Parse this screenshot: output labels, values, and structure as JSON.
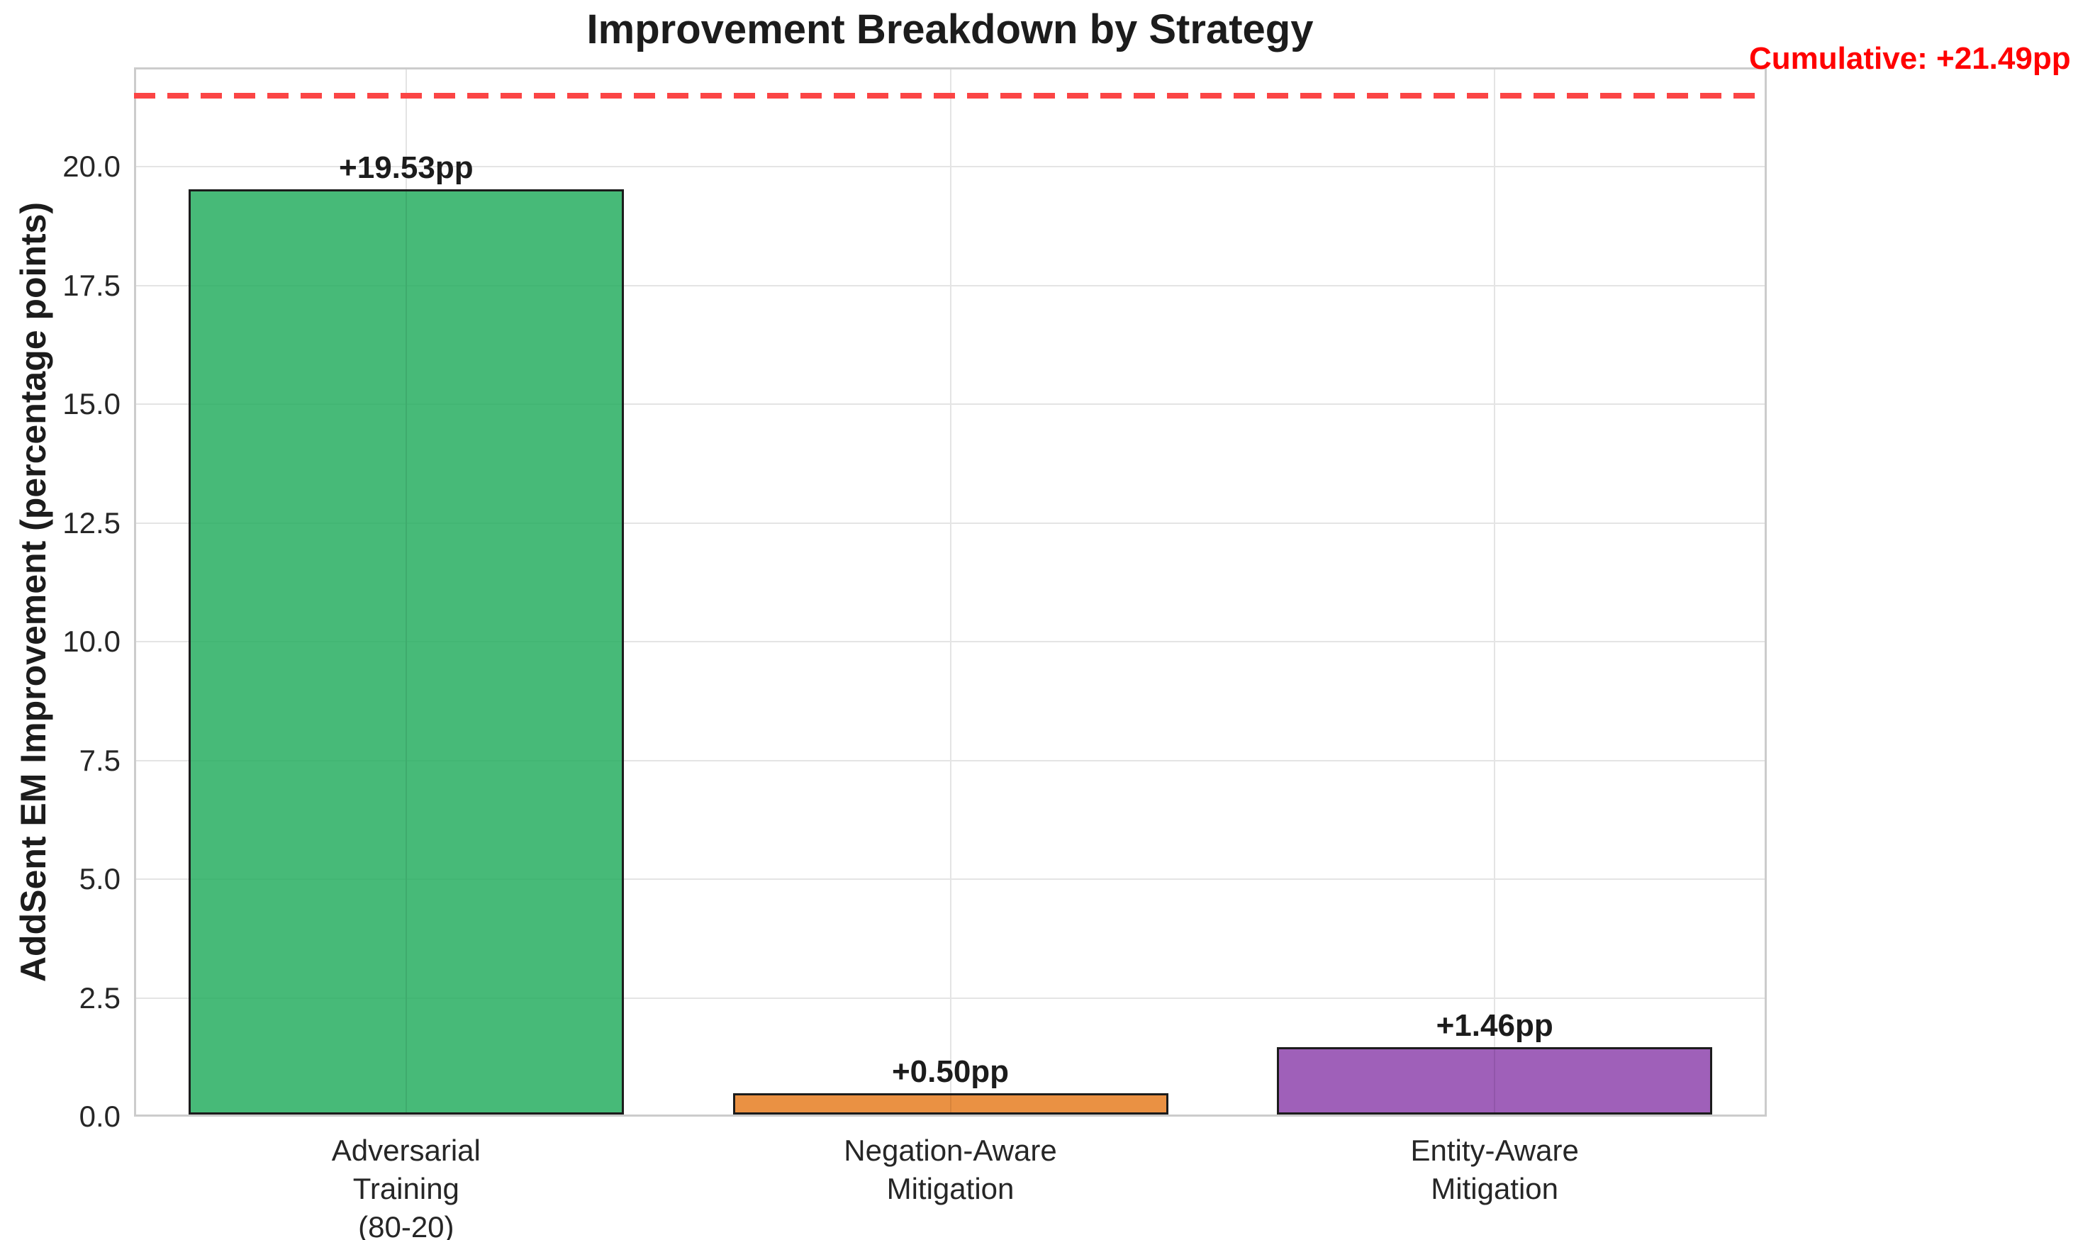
{
  "chart_data": {
    "type": "bar",
    "title": "Improvement Breakdown by Strategy",
    "xlabel": "",
    "ylabel": "AddSent EM Improvement (percentage points)",
    "categories": [
      "Adversarial\nTraining\n(80-20)",
      "Negation-Aware\nMitigation",
      "Entity-Aware\nMitigation"
    ],
    "values": [
      19.53,
      0.5,
      1.46
    ],
    "bar_value_labels": [
      "+19.53pp",
      "+0.50pp",
      "+1.46pp"
    ],
    "bar_fill_colors": [
      "rgba(39,174,96,0.85)",
      "rgba(230,126,34,0.85)",
      "rgba(142,68,173,0.85)"
    ],
    "bar_fill_hex": [
      "#47b878",
      "#e89244",
      "#a062ba"
    ],
    "bar_edge_color": "#1c1c1c",
    "ytick_labels": [
      "0.0",
      "2.5",
      "5.0",
      "7.5",
      "10.0",
      "12.5",
      "15.0",
      "17.5",
      "20.0"
    ],
    "yticks": [
      0.0,
      2.5,
      5.0,
      7.5,
      10.0,
      12.5,
      15.0,
      17.5,
      20.0
    ],
    "ylim": [
      0,
      22.09
    ],
    "grid": true,
    "legend": "none",
    "cumulative_line": {
      "value": 21.49,
      "label": "Cumulative: +21.49pp",
      "line_color": "#fb4545",
      "label_color": "#ff0000",
      "style": "dashed"
    }
  }
}
